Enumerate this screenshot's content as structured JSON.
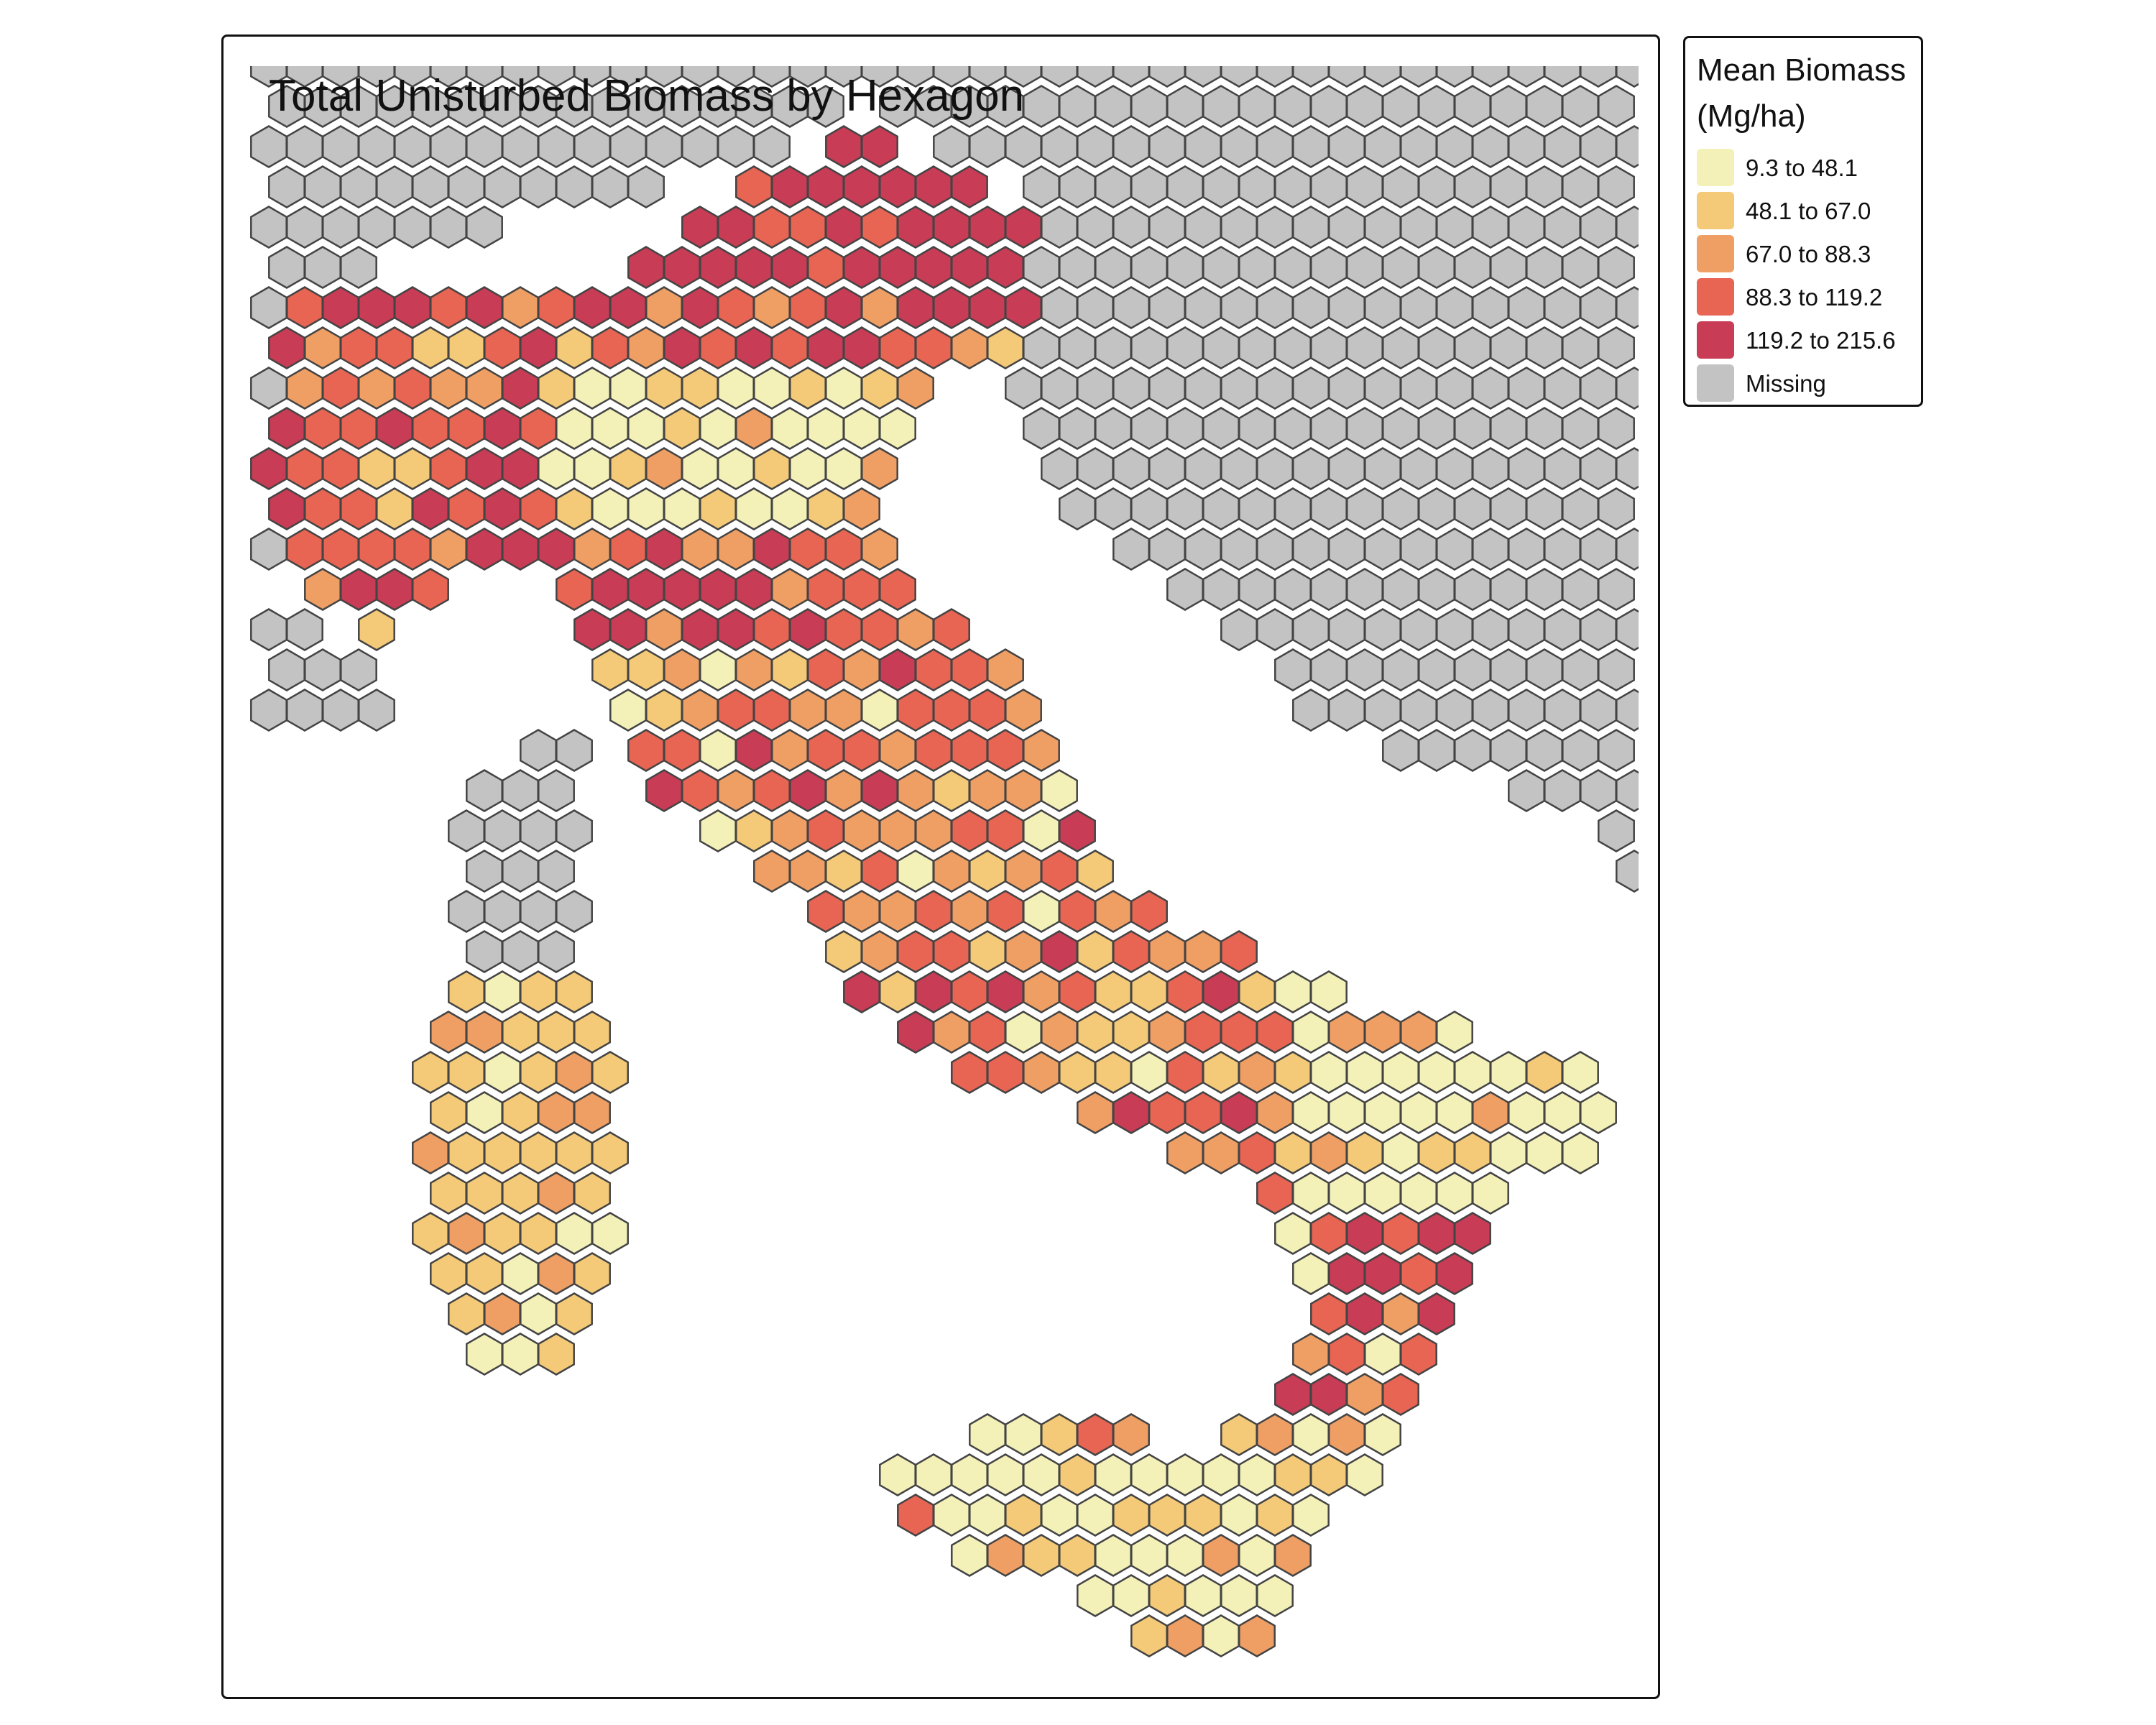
{
  "map": {
    "title": "Total Unisturbed Biomass by Hexagon",
    "region": "Italy (hexagonal grid)"
  },
  "legend": {
    "title_line1": "Mean Biomass",
    "title_line2": "(Mg/ha)",
    "items": [
      {
        "label": "9.3 to 48.1",
        "color": "#f3f1b8"
      },
      {
        "label": "48.1 to 67.0",
        "color": "#f4ca78"
      },
      {
        "label": "67.0 to 88.3",
        "color": "#f09f64"
      },
      {
        "label": "88.3 to 119.2",
        "color": "#e86453"
      },
      {
        "label": "119.2 to 215.6",
        "color": "#c83c55"
      },
      {
        "label": "Missing",
        "color": "#c3c3c3"
      }
    ]
  },
  "colors": {
    "hex_stroke": "#444444",
    "frame": "#111111"
  }
}
